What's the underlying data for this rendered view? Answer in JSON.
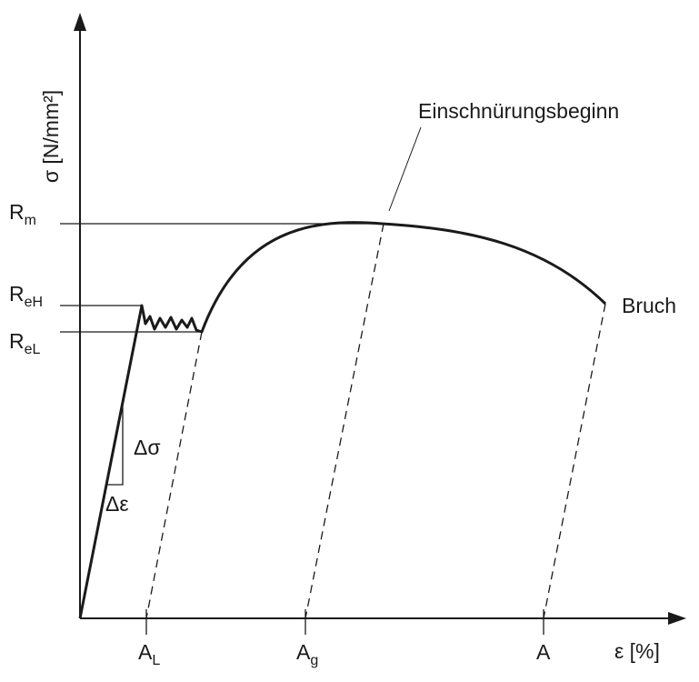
{
  "y_axis_label": "σ [N/mm²]",
  "x_axis_label": "ε [%]",
  "y_markers": [
    {
      "main": "R",
      "sub": "m"
    },
    {
      "main": "R",
      "sub": "eH"
    },
    {
      "main": "R",
      "sub": "eL"
    }
  ],
  "x_markers": [
    {
      "main": "A",
      "sub": "L"
    },
    {
      "main": "A",
      "sub": "g"
    },
    {
      "main": "A",
      "sub": ""
    }
  ],
  "annotations": {
    "necking": "Einschnürungsbeginn",
    "fracture": "Bruch",
    "delta_sigma": "Δσ",
    "delta_epsilon": "Δε"
  },
  "colors": {
    "line": "#1a1a1a",
    "background": "#ffffff"
  }
}
